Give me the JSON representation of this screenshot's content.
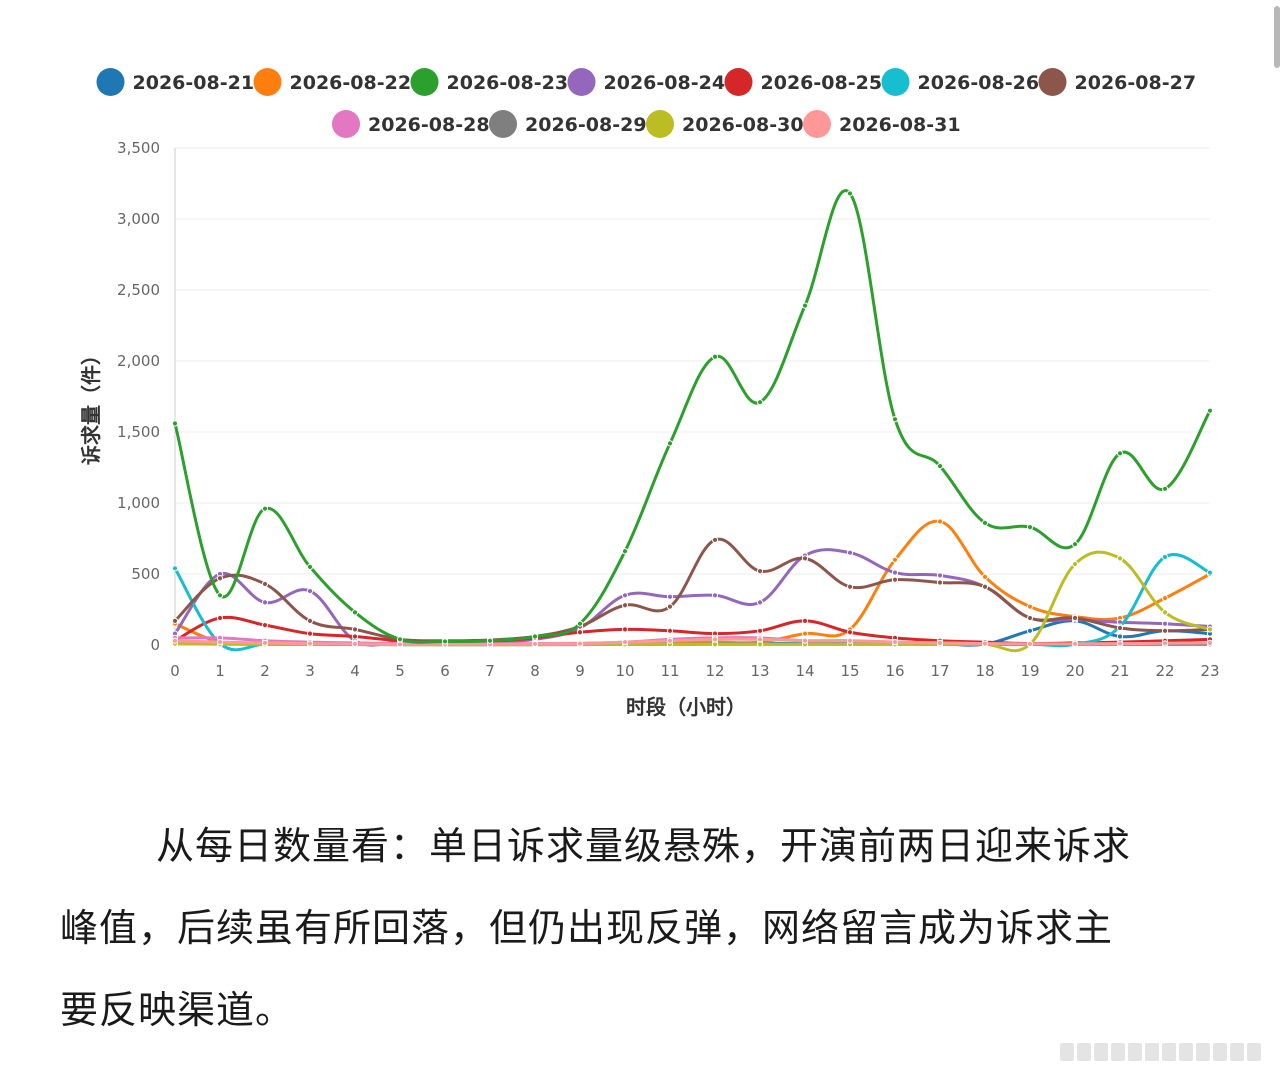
{
  "chart_data": {
    "type": "line",
    "xlabel": "时段（小时）",
    "ylabel": "诉求量（件）",
    "x": [
      "0",
      "1",
      "2",
      "3",
      "4",
      "5",
      "6",
      "7",
      "8",
      "9",
      "10",
      "11",
      "12",
      "13",
      "14",
      "15",
      "16",
      "17",
      "18",
      "19",
      "20",
      "21",
      "22",
      "23"
    ],
    "ylim": [
      0,
      3500
    ],
    "yticks": [
      "0",
      "500",
      "1,000",
      "1,500",
      "2,000",
      "2,500",
      "3,000",
      "3,500"
    ],
    "grid": true,
    "legend_position": "top",
    "series": [
      {
        "name": "2026-08-21",
        "color": "#1f77b4",
        "values": [
          20,
          10,
          8,
          6,
          5,
          4,
          3,
          3,
          4,
          8,
          10,
          10,
          12,
          12,
          10,
          10,
          10,
          8,
          6,
          100,
          170,
          60,
          100,
          80
        ]
      },
      {
        "name": "2026-08-22",
        "color": "#ff7f0e",
        "values": [
          150,
          20,
          15,
          10,
          8,
          5,
          5,
          5,
          8,
          10,
          15,
          18,
          20,
          20,
          80,
          110,
          600,
          870,
          480,
          270,
          200,
          190,
          330,
          500
        ]
      },
      {
        "name": "2026-08-23",
        "color": "#2ca02c",
        "values": [
          1560,
          350,
          960,
          550,
          230,
          40,
          25,
          30,
          60,
          150,
          660,
          1420,
          2030,
          1710,
          2390,
          3180,
          1590,
          1260,
          860,
          830,
          710,
          1350,
          1100,
          1650
        ]
      },
      {
        "name": "2026-08-24",
        "color": "#9467bd",
        "values": [
          80,
          500,
          300,
          380,
          30,
          20,
          15,
          20,
          40,
          120,
          350,
          340,
          350,
          300,
          630,
          650,
          510,
          490,
          410,
          190,
          180,
          160,
          150,
          130
        ]
      },
      {
        "name": "2026-08-25",
        "color": "#d62728",
        "values": [
          30,
          190,
          140,
          80,
          60,
          30,
          20,
          25,
          50,
          90,
          110,
          100,
          80,
          100,
          170,
          90,
          50,
          30,
          20,
          10,
          15,
          20,
          30,
          40
        ]
      },
      {
        "name": "2026-08-26",
        "color": "#17becf",
        "values": [
          540,
          10,
          5,
          5,
          3,
          3,
          3,
          3,
          3,
          3,
          5,
          5,
          8,
          8,
          8,
          8,
          8,
          5,
          5,
          5,
          5,
          130,
          620,
          510
        ]
      },
      {
        "name": "2026-08-27",
        "color": "#8c564b",
        "values": [
          170,
          470,
          430,
          170,
          110,
          40,
          30,
          35,
          60,
          130,
          280,
          270,
          740,
          520,
          610,
          410,
          460,
          440,
          410,
          190,
          190,
          120,
          100,
          110
        ]
      },
      {
        "name": "2026-08-28",
        "color": "#e377c2",
        "values": [
          50,
          50,
          30,
          20,
          15,
          10,
          8,
          8,
          10,
          12,
          20,
          40,
          50,
          50,
          30,
          30,
          20,
          15,
          10,
          5,
          5,
          5,
          5,
          5
        ]
      },
      {
        "name": "2026-08-29",
        "color": "#7f7f7f",
        "values": [
          10,
          8,
          5,
          5,
          5,
          3,
          3,
          3,
          3,
          5,
          5,
          5,
          5,
          5,
          5,
          5,
          5,
          5,
          5,
          5,
          5,
          5,
          5,
          5
        ]
      },
      {
        "name": "2026-08-30",
        "color": "#bcbd22",
        "values": [
          10,
          5,
          5,
          5,
          5,
          3,
          3,
          3,
          3,
          3,
          5,
          5,
          5,
          5,
          5,
          5,
          5,
          5,
          5,
          5,
          570,
          610,
          230,
          110
        ]
      },
      {
        "name": "2026-08-31",
        "color": "#ff9896",
        "values": [
          30,
          20,
          15,
          10,
          8,
          5,
          5,
          5,
          8,
          10,
          20,
          30,
          40,
          40,
          30,
          30,
          20,
          15,
          10,
          8,
          8,
          10,
          12,
          15
        ]
      }
    ]
  },
  "caption": {
    "line1": "从每日数量看：单日诉求量级悬殊，开演前两日迎来诉求",
    "line2": "峰值，后续虽有所回落，但仍出现反弹，网络留言成为诉求主",
    "line3": "要反映渠道。"
  }
}
